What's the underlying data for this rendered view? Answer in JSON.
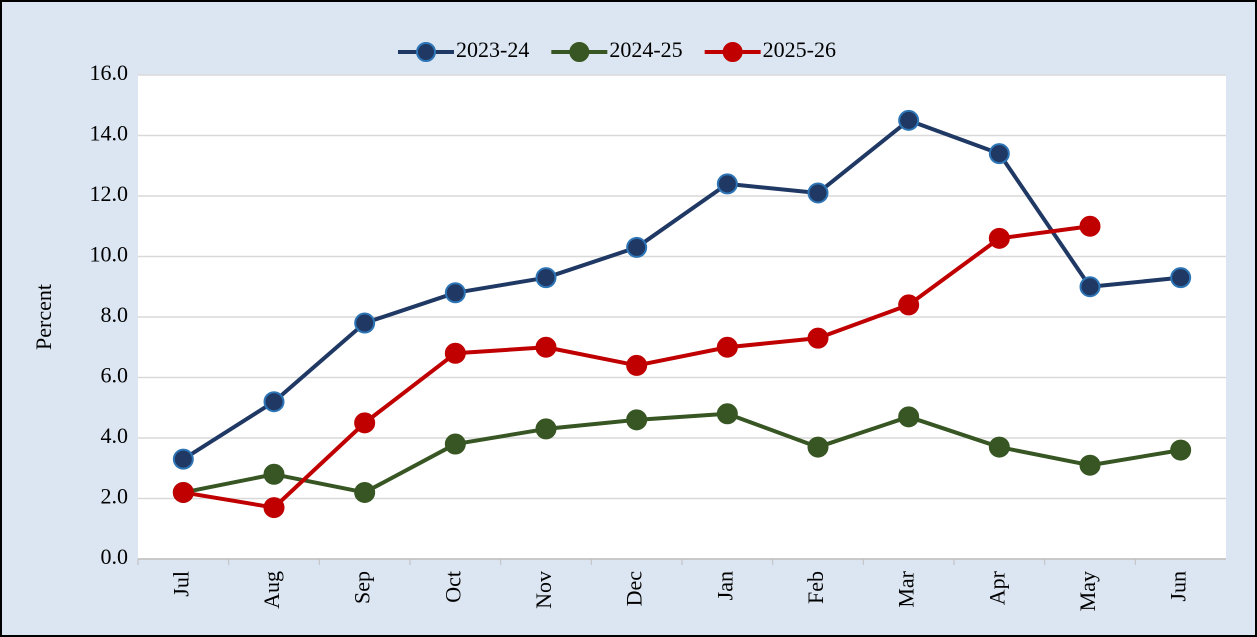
{
  "chart_data": {
    "type": "line",
    "y_label": "Percent",
    "categories": [
      "Jul",
      "Aug",
      "Sep",
      "Oct",
      "Nov",
      "Dec",
      "Jan",
      "Feb",
      "Mar",
      "Apr",
      "May",
      "Jun"
    ],
    "series": [
      {
        "name": "2023-24",
        "color": "#1f3864",
        "values": [
          3.3,
          5.2,
          7.8,
          8.8,
          9.3,
          10.3,
          12.4,
          12.1,
          14.5,
          13.4,
          9.0,
          9.3
        ]
      },
      {
        "name": "2024-25",
        "color": "#375623",
        "values": [
          2.2,
          2.8,
          2.2,
          3.8,
          4.3,
          4.6,
          4.8,
          3.7,
          4.7,
          3.7,
          3.1,
          3.6
        ]
      },
      {
        "name": "2025-26",
        "color": "#c00000",
        "values": [
          2.2,
          1.7,
          4.5,
          6.8,
          7.0,
          6.4,
          7.0,
          7.3,
          8.4,
          10.6,
          11.0,
          null
        ]
      }
    ],
    "ylim": [
      0,
      16
    ],
    "yticks": [
      {
        "value": 0,
        "label": "0.0"
      },
      {
        "value": 2,
        "label": "2.0"
      },
      {
        "value": 4,
        "label": "4.0"
      },
      {
        "value": 6,
        "label": "6.0"
      },
      {
        "value": 8,
        "label": "8.0"
      },
      {
        "value": 10,
        "label": "10.0"
      },
      {
        "value": 12,
        "label": "12.0"
      },
      {
        "value": 14,
        "label": "14.0"
      },
      {
        "value": 16,
        "label": "16.0"
      }
    ],
    "grid": true,
    "legend": "top"
  }
}
